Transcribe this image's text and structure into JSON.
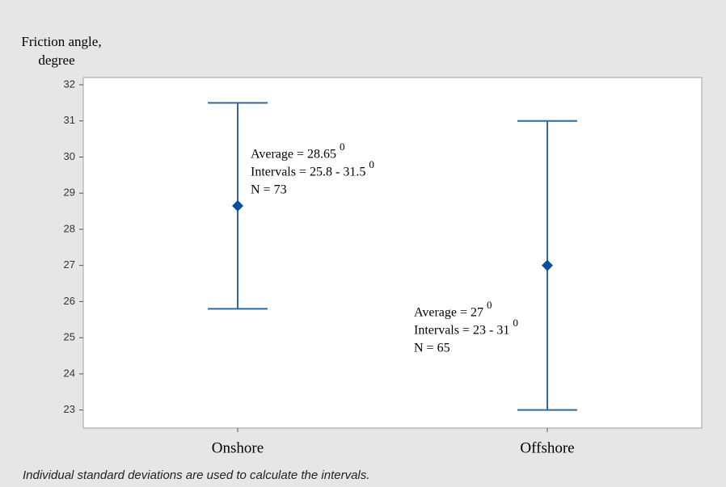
{
  "chart_data": {
    "type": "interval",
    "y_label_lines": [
      "Friction angle,",
      "degree"
    ],
    "categories": [
      "Onshore",
      "Offshore"
    ],
    "means": [
      28.65,
      27
    ],
    "lower": [
      25.8,
      23
    ],
    "upper": [
      31.5,
      31
    ],
    "color": "#2e6a9e",
    "marker_color": "#0b4f9c",
    "ylim": [
      22.5,
      32.2
    ],
    "yticks": [
      23,
      24,
      25,
      26,
      27,
      28,
      29,
      30,
      31,
      32
    ],
    "annotations": [
      {
        "lines": [
          {
            "text": "Average = 28.65",
            "sup": "0"
          },
          {
            "text": "Intervals = 25.8 - 31.5",
            "sup": "0"
          },
          {
            "text": "N = 73"
          }
        ]
      },
      {
        "lines": [
          {
            "text": "Average = 27",
            "sup": "0"
          },
          {
            "text": "Intervals = 23 - 31",
            "sup": "0"
          },
          {
            "text": "N = 65"
          }
        ]
      }
    ],
    "footnote": "Individual standard deviations are used to calculate the intervals."
  }
}
